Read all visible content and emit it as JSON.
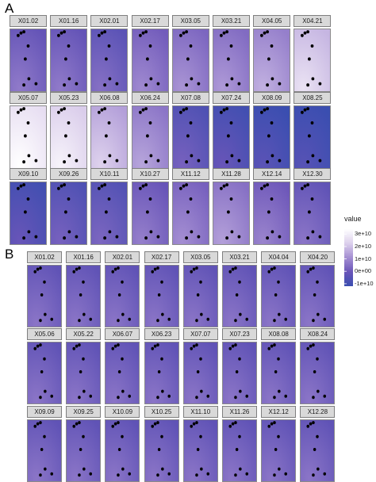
{
  "chart_data": [
    {
      "type": "heatmap",
      "panel_label": "A",
      "facets": [
        {
          "name": "X01.02",
          "value": 2000000000.0
        },
        {
          "name": "X01.16",
          "value": 2000000000.0
        },
        {
          "name": "X02.01",
          "value": 0.0
        },
        {
          "name": "X02.17",
          "value": 5000000000.0
        },
        {
          "name": "X03.05",
          "value": 7000000000.0
        },
        {
          "name": "X03.21",
          "value": 8000000000.0
        },
        {
          "name": "X04.05",
          "value": 12000000000.0
        },
        {
          "name": "X04.21",
          "value": 22000000000.0
        },
        {
          "name": "X05.07",
          "value": 30000000000.0
        },
        {
          "name": "X05.23",
          "value": 26000000000.0
        },
        {
          "name": "X06.08",
          "value": 18000000000.0
        },
        {
          "name": "X06.24",
          "value": 10000000000.0
        },
        {
          "name": "X07.08",
          "value": -3000000000.0
        },
        {
          "name": "X07.24",
          "value": -6000000000.0
        },
        {
          "name": "X08.09",
          "value": -9000000000.0
        },
        {
          "name": "X08.25",
          "value": -10000000000.0
        },
        {
          "name": "X09.10",
          "value": -6000000000.0
        },
        {
          "name": "X09.26",
          "value": -3000000000.0
        },
        {
          "name": "X10.11",
          "value": -2000000000.0
        },
        {
          "name": "X10.27",
          "value": 3000000000.0
        },
        {
          "name": "X11.12",
          "value": 6000000000.0
        },
        {
          "name": "X11.28",
          "value": 9000000000.0
        },
        {
          "name": "X12.14",
          "value": 4000000000.0
        },
        {
          "name": "X12.30",
          "value": 1000000000.0
        }
      ]
    },
    {
      "type": "heatmap",
      "panel_label": "B",
      "facets": [
        {
          "name": "X01.02",
          "value": 1000000000.0
        },
        {
          "name": "X01.16",
          "value": 1000000000.0
        },
        {
          "name": "X02.01",
          "value": 1000000000.0
        },
        {
          "name": "X02.17",
          "value": 1000000000.0
        },
        {
          "name": "X03.05",
          "value": 1000000000.0
        },
        {
          "name": "X03.21",
          "value": 1000000000.0
        },
        {
          "name": "X04.04",
          "value": 1000000000.0
        },
        {
          "name": "X04.20",
          "value": 1000000000.0
        },
        {
          "name": "X05.06",
          "value": 1000000000.0
        },
        {
          "name": "X05.22",
          "value": 1000000000.0
        },
        {
          "name": "X06.07",
          "value": 1000000000.0
        },
        {
          "name": "X06.23",
          "value": 1000000000.0
        },
        {
          "name": "X07.07",
          "value": 1000000000.0
        },
        {
          "name": "X07.23",
          "value": 1000000000.0
        },
        {
          "name": "X08.08",
          "value": 1000000000.0
        },
        {
          "name": "X08.24",
          "value": 1000000000.0
        },
        {
          "name": "X09.09",
          "value": 1000000000.0
        },
        {
          "name": "X09.25",
          "value": 1000000000.0
        },
        {
          "name": "X10.09",
          "value": 1000000000.0
        },
        {
          "name": "X10.25",
          "value": 1000000000.0
        },
        {
          "name": "X11.10",
          "value": 1000000000.0
        },
        {
          "name": "X11.26",
          "value": 1000000000.0
        },
        {
          "name": "X12.12",
          "value": 1000000000.0
        },
        {
          "name": "X12.28",
          "value": 1000000000.0
        }
      ]
    }
  ],
  "legend": {
    "title": "value",
    "ticks": [
      {
        "label": "3e+10",
        "value": 30000000000.0
      },
      {
        "label": "2e+10",
        "value": 20000000000.0
      },
      {
        "label": "1e+10",
        "value": 10000000000.0
      },
      {
        "label": "0e+00",
        "value": 0
      },
      {
        "label": "-1e+10",
        "value": -10000000000.0
      }
    ],
    "range": [
      -12000000000.0,
      34000000000.0
    ],
    "colors": [
      "#3a4eb0",
      "#6a55b8",
      "#a48ed2",
      "#dcd0ec",
      "#ffffff"
    ]
  },
  "points": [
    [
      0.22,
      0.1
    ],
    [
      0.3,
      0.06
    ],
    [
      0.38,
      0.04
    ],
    [
      0.5,
      0.27
    ],
    [
      0.42,
      0.48
    ],
    [
      0.52,
      0.8
    ],
    [
      0.38,
      0.9
    ],
    [
      0.72,
      0.88
    ]
  ]
}
